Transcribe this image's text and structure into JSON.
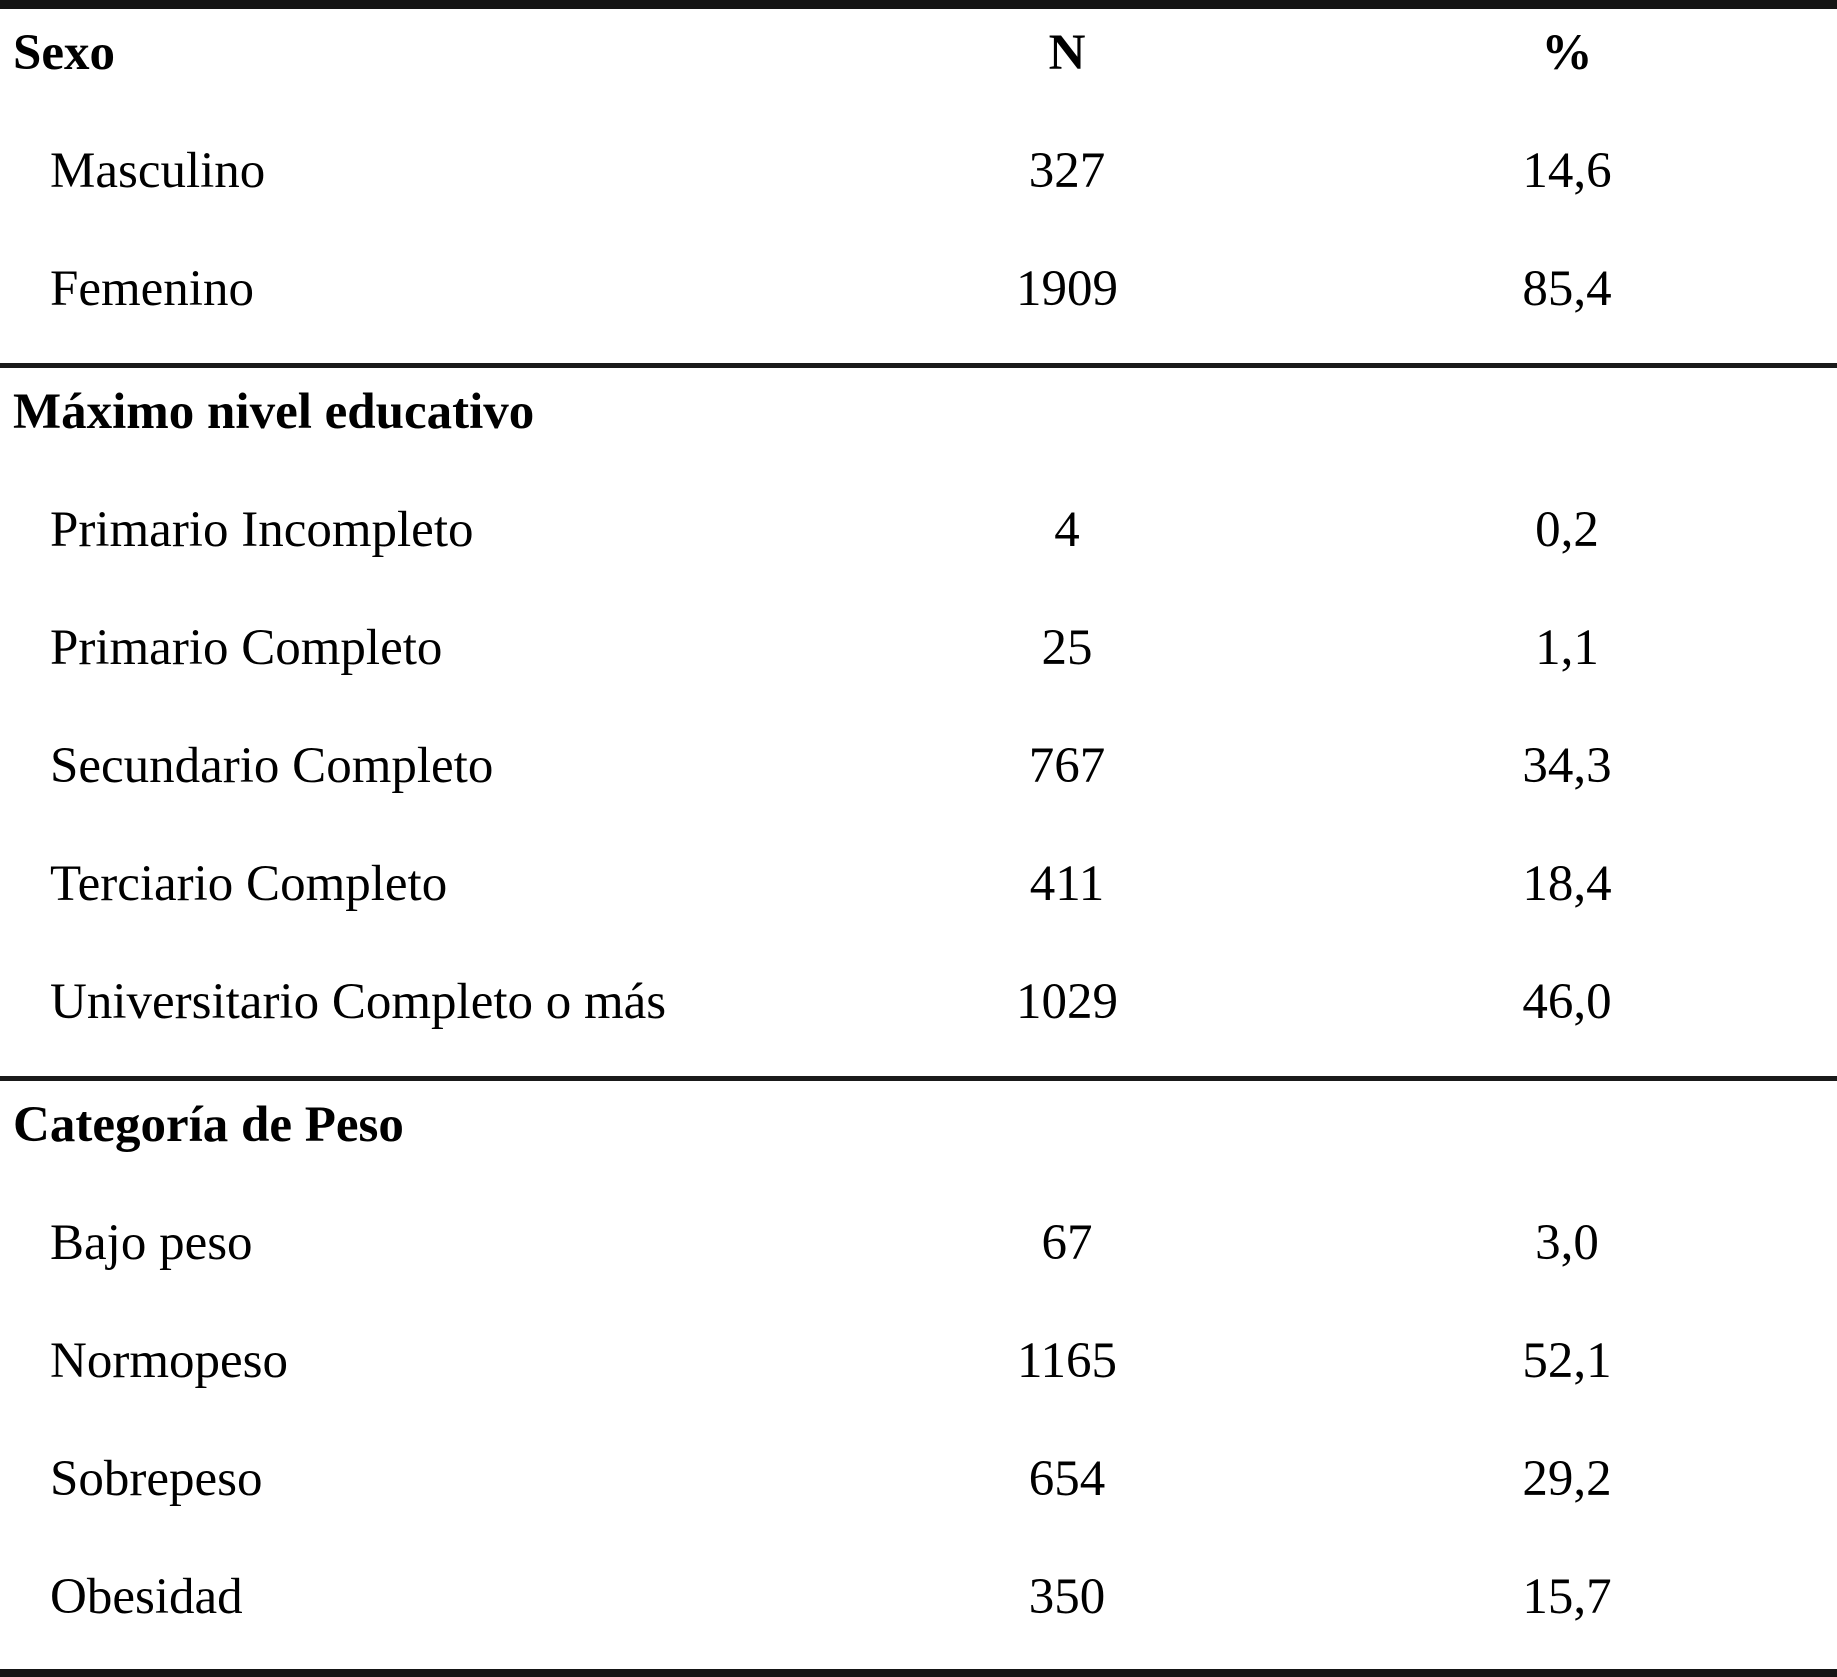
{
  "table": {
    "column_headers": {
      "n": "N",
      "pct": "%"
    },
    "sections": [
      {
        "header": "Sexo",
        "rows": [
          {
            "label": "Masculino",
            "n": "327",
            "pct": "14,6"
          },
          {
            "label": "Femenino",
            "n": "1909",
            "pct": "85,4"
          }
        ]
      },
      {
        "header": "Máximo nivel educativo",
        "rows": [
          {
            "label": "Primario Incompleto",
            "n": "4",
            "pct": "0,2"
          },
          {
            "label": "Primario Completo",
            "n": "25",
            "pct": "1,1"
          },
          {
            "label": "Secundario Completo",
            "n": "767",
            "pct": "34,3"
          },
          {
            "label": "Terciario Completo",
            "n": "411",
            "pct": "18,4"
          },
          {
            "label": "Universitario Completo o más",
            "n": "1029",
            "pct": "46,0"
          }
        ]
      },
      {
        "header": "Categoría de Peso",
        "rows": [
          {
            "label": "Bajo peso",
            "n": "67",
            "pct": "3,0"
          },
          {
            "label": "Normopeso",
            "n": "1165",
            "pct": "52,1"
          },
          {
            "label": "Sobrepeso",
            "n": "654",
            "pct": "29,2"
          },
          {
            "label": "Obesidad",
            "n": "350",
            "pct": "15,7"
          }
        ]
      }
    ]
  },
  "colors": {
    "text": "#000000",
    "rule": "#1a1a1a",
    "background": "#ffffff"
  }
}
